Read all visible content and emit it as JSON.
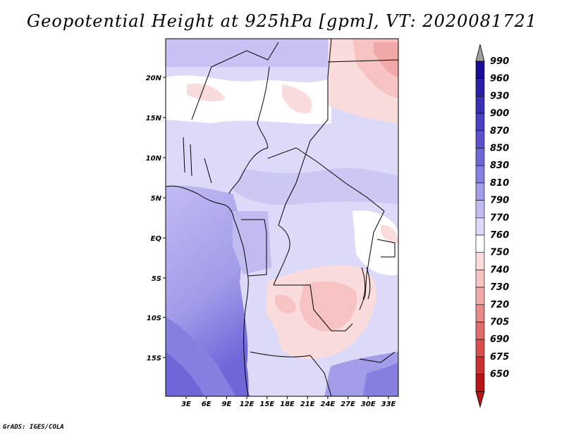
{
  "title": "Geopotential Height at 925hPa [gpm], VT: 2020081721",
  "credit": "GrADS: IGES/COLA",
  "map": {
    "lat_ticks": [
      "20N",
      "15N",
      "10N",
      "5N",
      "EQ",
      "5S",
      "10S",
      "15S"
    ],
    "lon_ticks": [
      "3E",
      "6E",
      "9E",
      "12E",
      "15E",
      "18E",
      "21E",
      "24E",
      "27E",
      "30E",
      "33E"
    ]
  },
  "colorbar": {
    "labels": [
      "990",
      "960",
      "930",
      "900",
      "870",
      "850",
      "830",
      "810",
      "790",
      "770",
      "760",
      "750",
      "740",
      "730",
      "720",
      "705",
      "690",
      "675",
      "650"
    ],
    "colors": [
      "#1a0d96",
      "#2a1fa6",
      "#3a2fb7",
      "#4a40c4",
      "#5c52cf",
      "#6f66d8",
      "#8680e0",
      "#a29ce9",
      "#c0bcf2",
      "#dcdaf8",
      "#ffffff",
      "#fbdcdc",
      "#f6c2c2",
      "#f0a8a8",
      "#e88a8a",
      "#e06c6c",
      "#d84e4e",
      "#cc3030",
      "#b81616"
    ],
    "top_arrow_color": "#a0a0a0"
  }
}
